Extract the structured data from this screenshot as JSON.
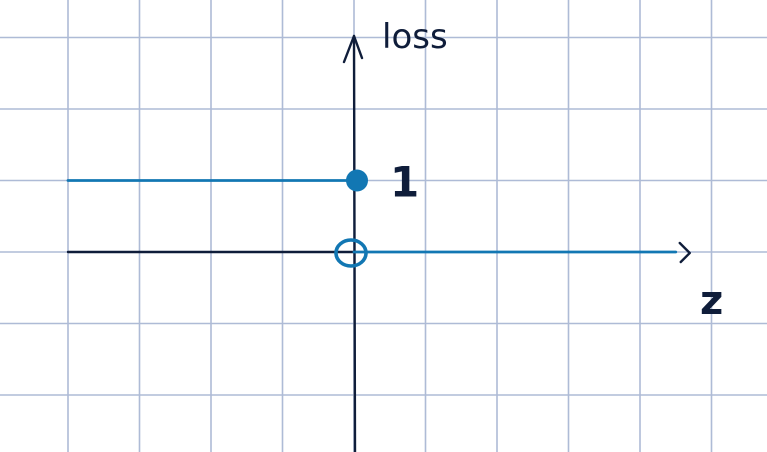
{
  "chart_data": {
    "type": "line",
    "xlabel": "z",
    "ylabel": "loss",
    "tick_labels": {
      "y": [
        "1"
      ]
    },
    "grid": true,
    "xlim": [
      -4,
      4.5
    ],
    "ylim": [
      -2.5,
      3
    ],
    "series": [
      {
        "points": [
          {
            "x": -4,
            "y": 1
          },
          {
            "x": 0,
            "y": 1
          }
        ],
        "endpoint": {
          "x": 0,
          "y": 1,
          "style": "closed"
        }
      },
      {
        "points": [
          {
            "x": 0,
            "y": 0
          },
          {
            "x": 4.5,
            "y": 0
          }
        ],
        "endpoint": {
          "x": 0,
          "y": 0,
          "style": "open"
        }
      }
    ],
    "colors": {
      "series": "#1277b3",
      "axis": "#0f1d3a",
      "grid": "#aebbd6"
    }
  }
}
